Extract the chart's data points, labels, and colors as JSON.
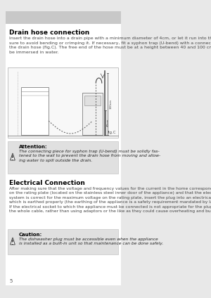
{
  "page_bg": "#e8e8e8",
  "content_bg": "#ffffff",
  "header_bar_color": "#c8c8c8",
  "page_number": "5",
  "section1_title": "Drain hose connection",
  "section1_body": "Insert the drain hose into a drain pipe with a minimum diameter of 4cm, or let it run into the sink, making\nsure to avoid bending or crimping it. If necessary, fit a syphon trap (U-bend) with a connecting piece for\nthe drain hose (fig.C). The free end of the hose must be at a height between 40 and 100 cm and must not\nbe immersed in water.",
  "attention_title": "Attention:",
  "attention_body": "The connecting piece for syphon trap (U-bend) must be solidly fas-\ntened to the wall to prevent the drain hose from moving and allow-\ning water to spill outside the drain.",
  "section2_title": "Electrical Connection",
  "section2_body": "After making sure that the voltage and frequency values for the current in the home correspond to those\non the rating plate (located on the stainless steel inner door of the appliance) and that the electrical\nsystem is correct for the maximum voltage on the rating plate, insert the plug into an electrical socket\nwhich is earthed properly (the earthing of the appliance is a safety requirement mandated by law).\nIf the electrical socket to which the appliance must be connected is not appropriate for the plug, replace\nthe whole cable, rather than using adaptors or the like as they could cause overheating and burns.",
  "caution_title": "Caution:",
  "caution_body": "The dishwasher plug must be accessible even when the appliance\nis installed as a built-in unit so that maintenance can be done safely.",
  "warning_box_bg": "#e0e0e0",
  "warning_box_border": "#bbbbbb",
  "title_color": "#000000",
  "body_color": "#444444",
  "bold_body_color": "#222222",
  "fig_label": "fig.C"
}
